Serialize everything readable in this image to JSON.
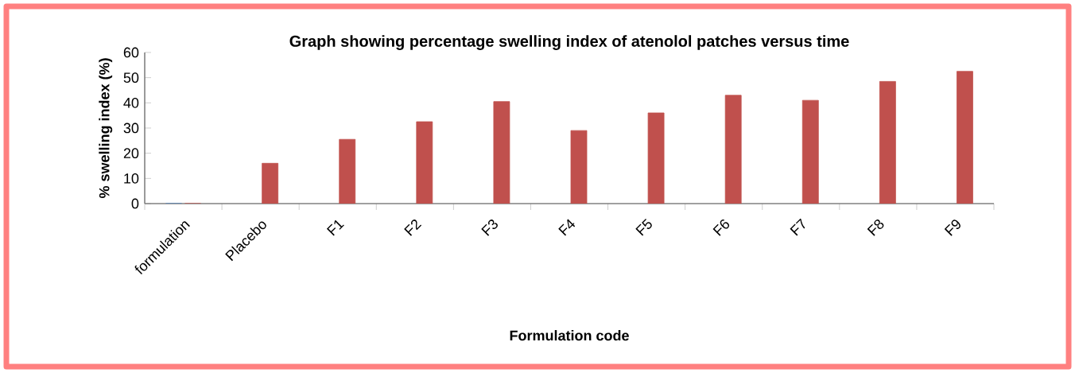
{
  "chart_data": {
    "type": "bar",
    "title": "Graph showing percentage swelling index of atenolol patches  versus time",
    "xlabel": "Formulation code",
    "ylabel": "% swelling index (%)",
    "categories": [
      "formulation",
      "Placebo",
      "F1",
      "F2",
      "F3",
      "F4",
      "F5",
      "F6",
      "F7",
      "F8",
      "F9"
    ],
    "series": [
      {
        "color": "#4f81bd",
        "values": [
          0,
          null,
          null,
          null,
          null,
          null,
          null,
          null,
          null,
          null,
          null
        ]
      },
      {
        "color": "#c0504d",
        "values": [
          0,
          16,
          25.5,
          32.5,
          40.5,
          29,
          36,
          43,
          41,
          48.5,
          52.5
        ]
      }
    ],
    "ylim": [
      0,
      60
    ],
    "yticks": [
      0,
      10,
      20,
      30,
      40,
      50,
      60
    ],
    "grid": false
  }
}
